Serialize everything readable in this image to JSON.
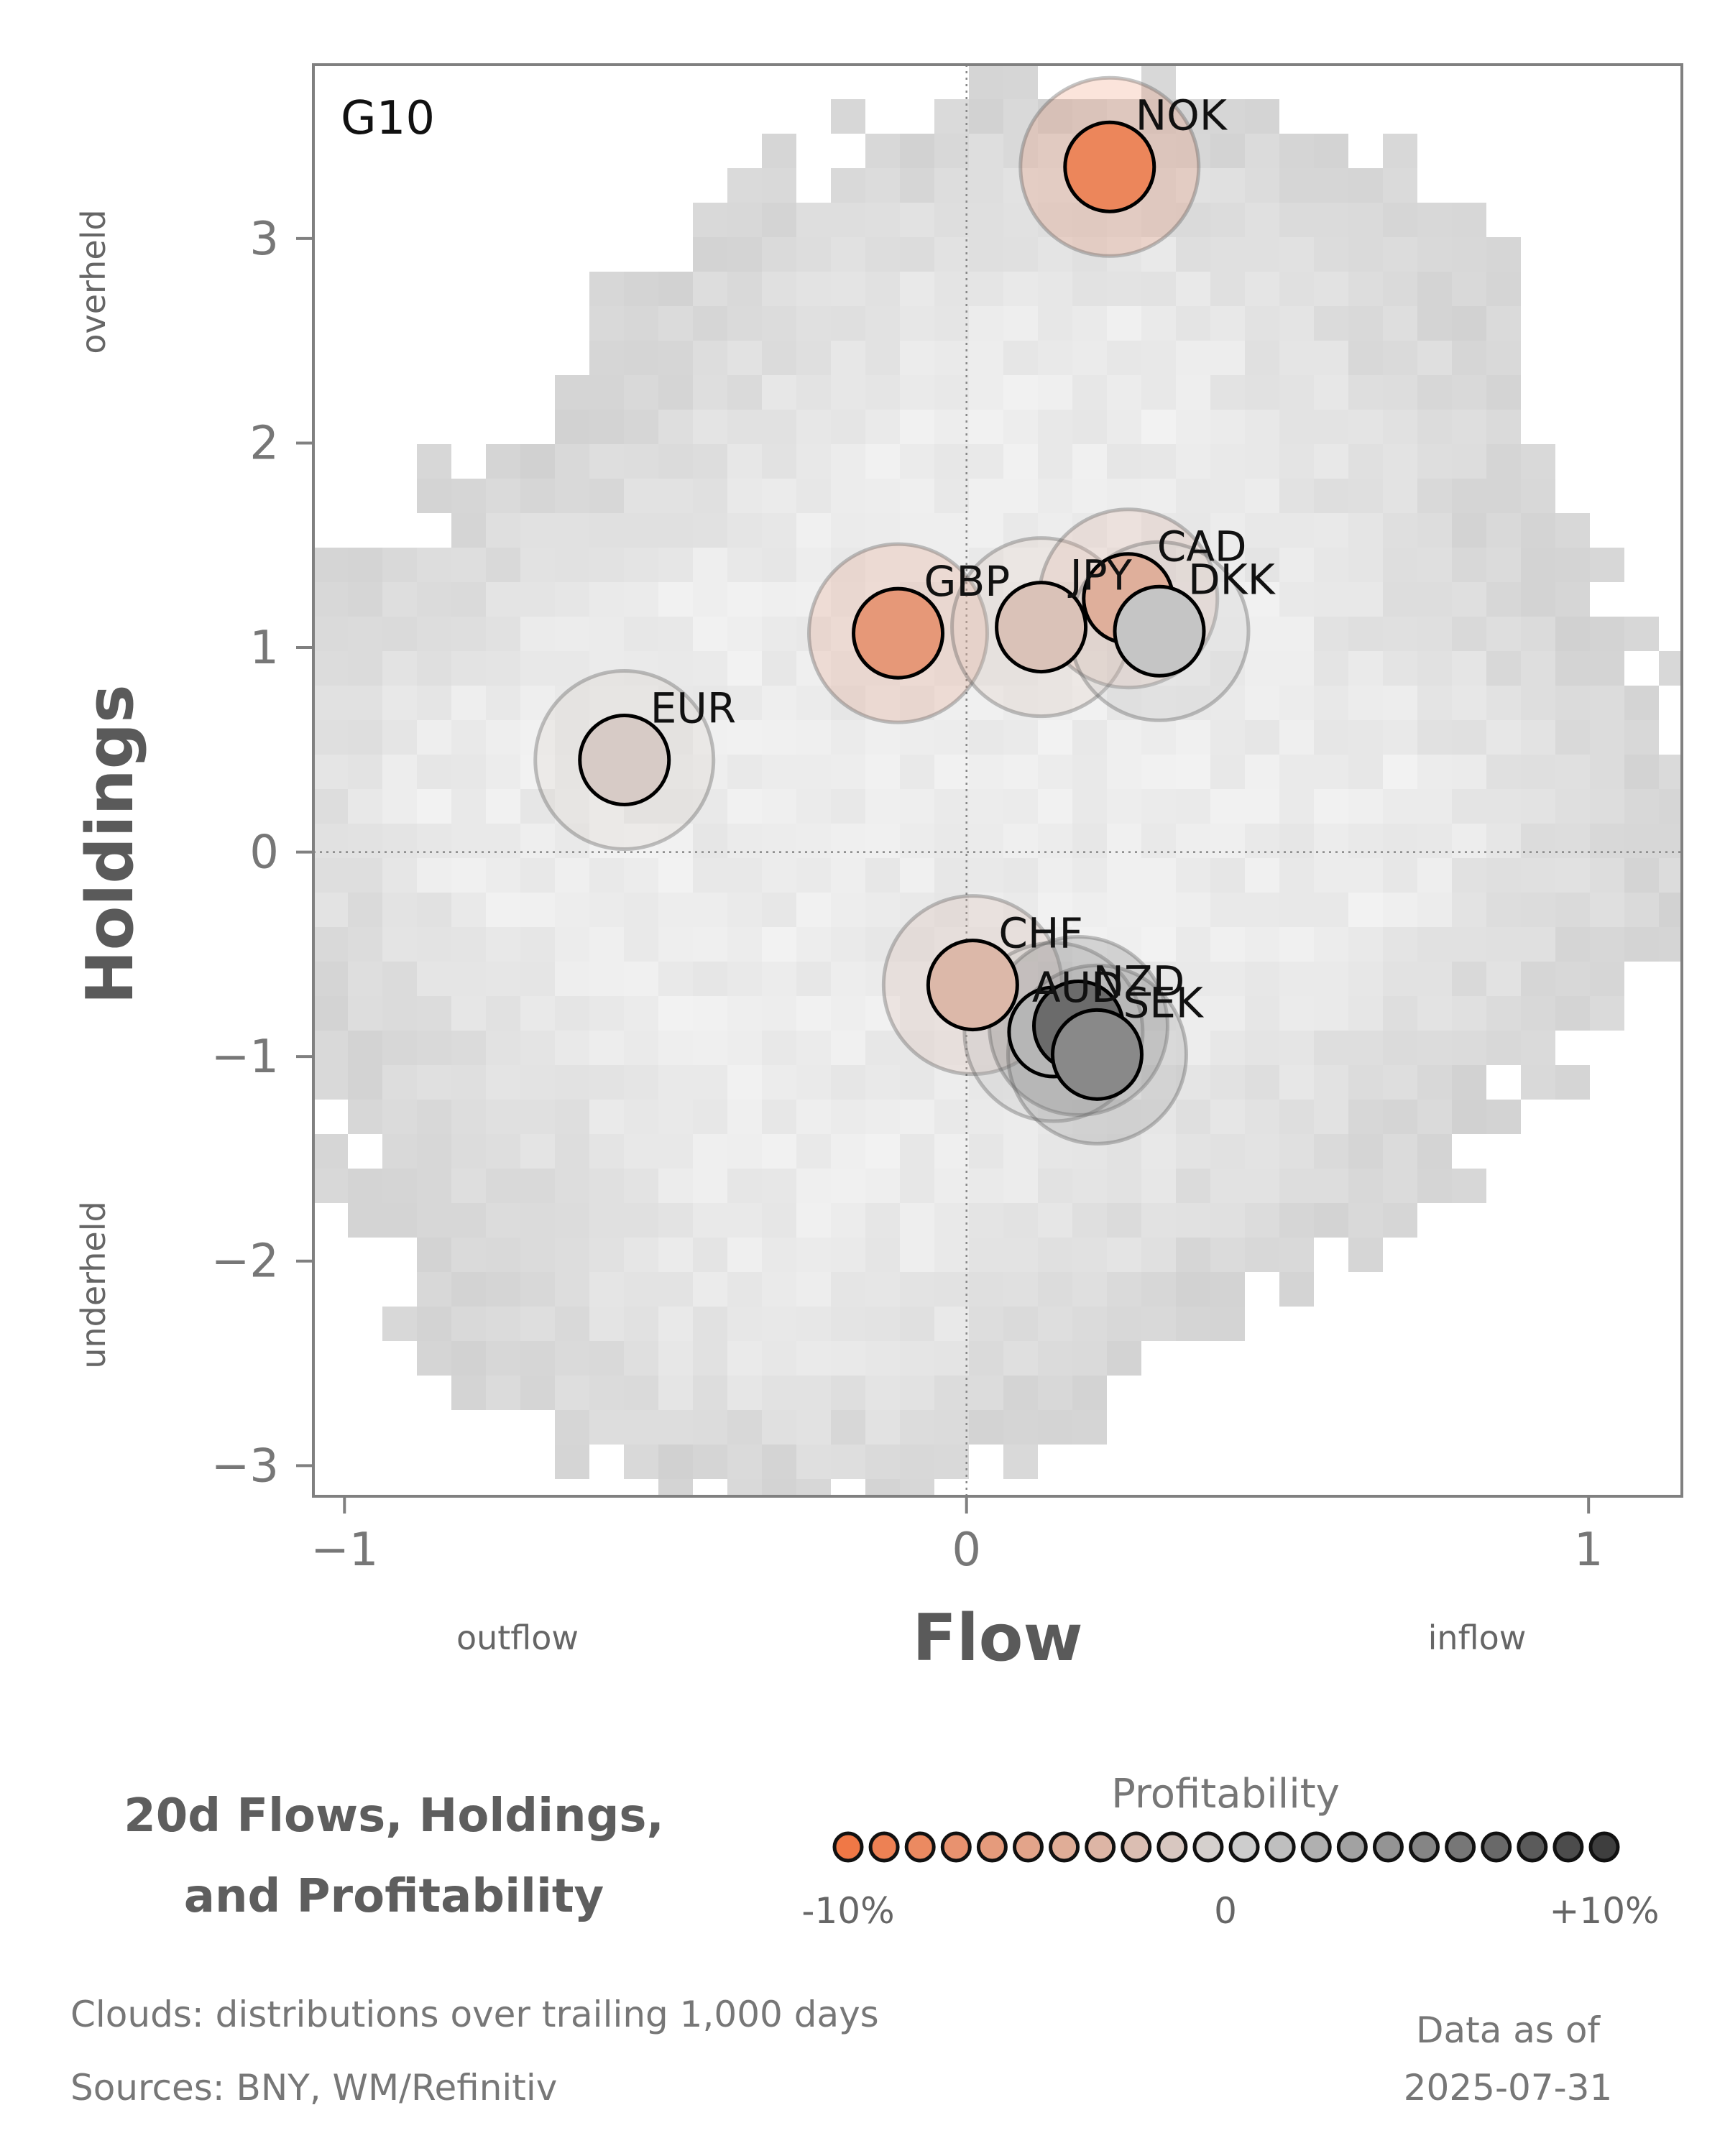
{
  "chart_data": {
    "type": "scatter",
    "panel_label": "G10",
    "xlabel": "Flow",
    "ylabel": "Holdings",
    "x_left_label": "outflow",
    "x_right_label": "inflow",
    "y_top_label": "overheld",
    "y_bottom_label": "underheld",
    "xlim": [
      -1.05,
      1.15
    ],
    "ylim": [
      -3.15,
      3.85
    ],
    "xticks": [
      {
        "value": -1,
        "label": "−1"
      },
      {
        "value": 0,
        "label": "0"
      },
      {
        "value": 1,
        "label": "1"
      }
    ],
    "yticks": [
      {
        "value": 3,
        "label": "3"
      },
      {
        "value": 2,
        "label": "2"
      },
      {
        "value": 1,
        "label": "1"
      },
      {
        "value": 0,
        "label": "0"
      },
      {
        "value": -1,
        "label": "−1"
      },
      {
        "value": -2,
        "label": "−2"
      },
      {
        "value": -3,
        "label": "−3"
      }
    ],
    "reference_lines": {
      "x": 0,
      "y": 0
    },
    "points": [
      {
        "label": "NOK",
        "flow": 0.23,
        "holdings": 3.35,
        "profitability": -0.085
      },
      {
        "label": "GBP",
        "flow": -0.11,
        "holdings": 1.07,
        "profitability": -0.065
      },
      {
        "label": "JPY",
        "flow": 0.12,
        "holdings": 1.1,
        "profitability": -0.02
      },
      {
        "label": "CAD",
        "flow": 0.26,
        "holdings": 1.24,
        "profitability": -0.04
      },
      {
        "label": "DKK",
        "flow": 0.31,
        "holdings": 1.08,
        "profitability": 0.01
      },
      {
        "label": "EUR",
        "flow": -0.55,
        "holdings": 0.45,
        "profitability": -0.01
      },
      {
        "label": "CHF",
        "flow": 0.01,
        "holdings": -0.65,
        "profitability": -0.03
      },
      {
        "label": "AUD",
        "flow": 0.14,
        "holdings": -0.88,
        "profitability": 0.02
      },
      {
        "label": "NZD",
        "flow": 0.18,
        "holdings": -0.85,
        "profitability": 0.07
      },
      {
        "label": "SEK",
        "flow": 0.21,
        "holdings": -0.99,
        "profitability": 0.05
      }
    ],
    "background": "density clouds (grey heatmap)",
    "legend": {
      "title": "Profitability",
      "tick_labels": [
        "-10%",
        "0",
        "+10%"
      ],
      "range": [
        -0.1,
        0.1
      ],
      "steps": 22,
      "color_low": "#f07846",
      "color_mid": "#d4d4d4",
      "color_high": "#3e3e3e"
    }
  },
  "title_lines": [
    "20d Flows, Holdings,",
    "and Profitability"
  ],
  "footer": {
    "clouds_note": "Clouds:  distributions over trailing 1,000 days",
    "sources": "Sources:  BNY, WM/Refinitiv",
    "data_as_of_label": "Data as of",
    "data_as_of_date": "2025-07-31"
  }
}
